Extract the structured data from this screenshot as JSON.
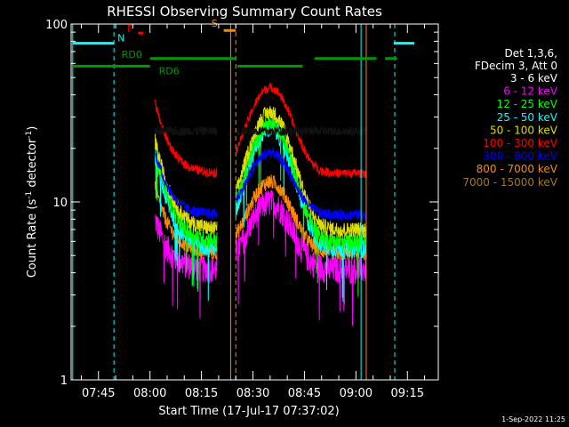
{
  "chart_data": {
    "type": "line",
    "title": "RHESSI Observing Summary Count Rates",
    "xlabel": "Start Time (17-Jul-17 07:37:02)",
    "ylabel_main": "Count Rate (s",
    "ylabel_sup": "-1",
    "ylabel_rest": " detector",
    "ylabel_sup2": "-1",
    "ylabel_end": ")",
    "yscale": "log",
    "ylim": [
      1,
      100
    ],
    "xlim_minutes": [
      457.03,
      564
    ],
    "y_ticks": [
      {
        "value": 1,
        "label": "1"
      },
      {
        "value": 10,
        "label": "10"
      },
      {
        "value": 100,
        "label": "100"
      }
    ],
    "x_ticks": [
      {
        "minute": 465,
        "label": "07:45"
      },
      {
        "minute": 480,
        "label": "08:00"
      },
      {
        "minute": 495,
        "label": "08:15"
      },
      {
        "minute": 510,
        "label": "08:30"
      },
      {
        "minute": 525,
        "label": "08:45"
      },
      {
        "minute": 540,
        "label": "09:00"
      },
      {
        "minute": 555,
        "label": "09:15"
      }
    ],
    "legend_header": [
      "Det 1,3,6,",
      "FDecim 3, Att 0"
    ],
    "series": [
      {
        "name": "3 - 6 keV",
        "color": "#000000",
        "plateau": 25,
        "dip": 25,
        "peak": 25,
        "noise": 0.06
      },
      {
        "name": "6 - 12 keV",
        "color": "#ff00ff",
        "plateau": 8,
        "dip": 4.2,
        "peak": 10,
        "noise": 0.18
      },
      {
        "name": "12 - 25 keV",
        "color": "#00ff00",
        "plateau": 20,
        "dip": 6.0,
        "peak": 28,
        "noise": 0.12
      },
      {
        "name": "25 - 50 keV",
        "color": "#00ffff",
        "plateau": 18,
        "dip": 5.5,
        "peak": 26,
        "noise": 0.12
      },
      {
        "name": "50 - 100 keV",
        "color": "#dddd00",
        "plateau": 22,
        "dip": 7,
        "peak": 32,
        "noise": 0.1
      },
      {
        "name": "100 - 300 keV",
        "color": "#ff0000",
        "plateau": 36,
        "dip": 14.5,
        "peak": 44,
        "noise": 0.06
      },
      {
        "name": "300 - 800 keV",
        "color": "#0000ff",
        "plateau": 19,
        "dip": 8.5,
        "peak": 19,
        "noise": 0.07
      },
      {
        "name": "800 - 7000 keV",
        "color": "#ff8800",
        "plateau": 12,
        "dip": 5.2,
        "peak": 13,
        "noise": 0.1
      },
      {
        "name": "7000 - 15000 keV",
        "color": "#a07820",
        "plateau": 0,
        "dip": 0,
        "peak": 0,
        "noise": 0
      }
    ],
    "data_windows_minutes": [
      [
        481.5,
        499.5
      ],
      [
        505.0,
        543.0
      ]
    ],
    "flags": [
      {
        "label": "N",
        "color": "#00ffff",
        "y": 78,
        "segments": [
          [
            457.5,
            469.5
          ],
          [
            551,
            557
          ]
        ]
      },
      {
        "label": "F",
        "color": "#ff0000",
        "y": 89,
        "segments": [
          [
            476.5,
            478
          ]
        ]
      },
      {
        "label": "S",
        "color": "#ff8800",
        "y": 92,
        "segments": [
          [
            501.5,
            505
          ]
        ]
      },
      {
        "label": "RD0",
        "color": "#009900",
        "y": 64,
        "segments": [
          [
            480,
            505
          ],
          [
            528,
            546
          ],
          [
            548.5,
            552
          ]
        ]
      },
      {
        "label": "RD6",
        "color": "#009900",
        "y": 58,
        "segments": [
          [
            457.5,
            480
          ],
          [
            505.5,
            524.5
          ]
        ]
      }
    ],
    "vlines": [
      {
        "minute": 457.5,
        "color": "#00ffff",
        "dash": false
      },
      {
        "minute": 469.5,
        "color": "#00ffff",
        "dash": true
      },
      {
        "minute": 541.5,
        "color": "#00ffff",
        "dash": false
      },
      {
        "minute": 551.3,
        "color": "#00ffff",
        "dash": true
      },
      {
        "minute": 503.5,
        "color": "#ff8800",
        "dash": false
      },
      {
        "minute": 505.0,
        "color": "#ff8800",
        "dash": true
      },
      {
        "minute": 543.0,
        "color": "#ff8800",
        "dash": false
      }
    ],
    "footer": "1-Sep-2022 11:25"
  }
}
